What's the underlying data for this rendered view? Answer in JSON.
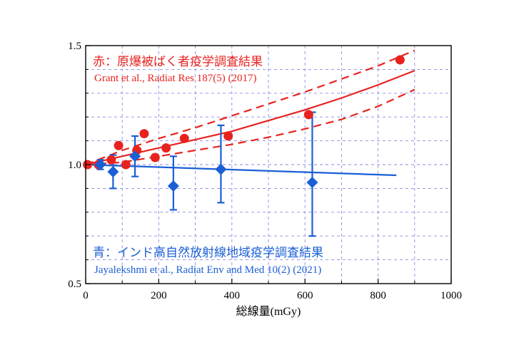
{
  "chart_data": {
    "type": "scatter",
    "xlabel": "総線量(mGy)",
    "ylabel": "",
    "xlim": [
      0,
      1000
    ],
    "ylim": [
      0.5,
      1.5
    ],
    "x_ticks": [
      0,
      200,
      400,
      600,
      800,
      1000
    ],
    "x_tick_labels": [
      "0",
      "200",
      "400",
      "600",
      "800",
      "1000"
    ],
    "y_ticks": [
      0.5,
      1.0,
      1.5
    ],
    "y_tick_labels": [
      "0.5",
      "1.0",
      "1.5"
    ],
    "grid": true,
    "annotations": [
      {
        "id": "red-title",
        "text": "赤：原爆被ばく者疫学調査結果",
        "color": "#e8231f"
      },
      {
        "id": "red-citation",
        "text": "Grant et al., Radiat Res 187(5) (2017)",
        "color": "#e8231f"
      },
      {
        "id": "blue-title",
        "text": "青：インド高自然放射線地域疫学調査結果",
        "color": "#1a5fd6"
      },
      {
        "id": "blue-citation",
        "text": "Jayalekshmi et al., Radiat Env and Med 10(2) (2021)",
        "color": "#1a5fd6"
      }
    ],
    "colors": {
      "red": "#e8231f",
      "blue": "#1a5fd6",
      "grid": "#8a8ae0",
      "axis": "#000000"
    },
    "series": [
      {
        "kind": "points",
        "marker": "circle",
        "color": "#e8231f",
        "x": [
          5,
          35,
          70,
          90,
          110,
          140,
          160,
          190,
          220,
          270,
          390,
          610,
          860
        ],
        "y": [
          1.0,
          1.0,
          1.02,
          1.08,
          1.0,
          1.06,
          1.13,
          1.03,
          1.07,
          1.11,
          1.12,
          1.21,
          1.44
        ]
      },
      {
        "kind": "fit",
        "style": "solid",
        "color": "#e8231f",
        "x": [
          0,
          100,
          200,
          300,
          400,
          500,
          600,
          700,
          800,
          900
        ],
        "y": [
          1.0,
          1.035,
          1.07,
          1.105,
          1.14,
          1.185,
          1.23,
          1.28,
          1.335,
          1.395
        ]
      },
      {
        "kind": "fit",
        "style": "dashed",
        "color": "#e8231f",
        "x": [
          0,
          100,
          200,
          300,
          400,
          500,
          600,
          700,
          800,
          900
        ],
        "y": [
          1.0,
          1.06,
          1.11,
          1.155,
          1.205,
          1.255,
          1.305,
          1.36,
          1.415,
          1.48
        ]
      },
      {
        "kind": "fit",
        "style": "dashed",
        "color": "#e8231f",
        "x": [
          0,
          100,
          200,
          300,
          400,
          500,
          600,
          700,
          800,
          900
        ],
        "y": [
          1.0,
          1.01,
          1.035,
          1.06,
          1.085,
          1.115,
          1.15,
          1.19,
          1.245,
          1.315
        ]
      },
      {
        "kind": "points",
        "marker": "diamond",
        "color": "#1a5fd6",
        "x": [
          40,
          75,
          135,
          240,
          370,
          620
        ],
        "y": [
          1.0,
          0.97,
          1.035,
          0.91,
          0.98,
          0.925
        ],
        "y_low": [
          0.98,
          0.9,
          0.95,
          0.81,
          0.84,
          0.7
        ],
        "y_high": [
          1.02,
          1.04,
          1.12,
          1.035,
          1.165,
          1.22
        ]
      },
      {
        "kind": "fit",
        "style": "solid",
        "color": "#1a5fd6",
        "x": [
          0,
          850
        ],
        "y": [
          1.0,
          0.955
        ]
      }
    ]
  }
}
